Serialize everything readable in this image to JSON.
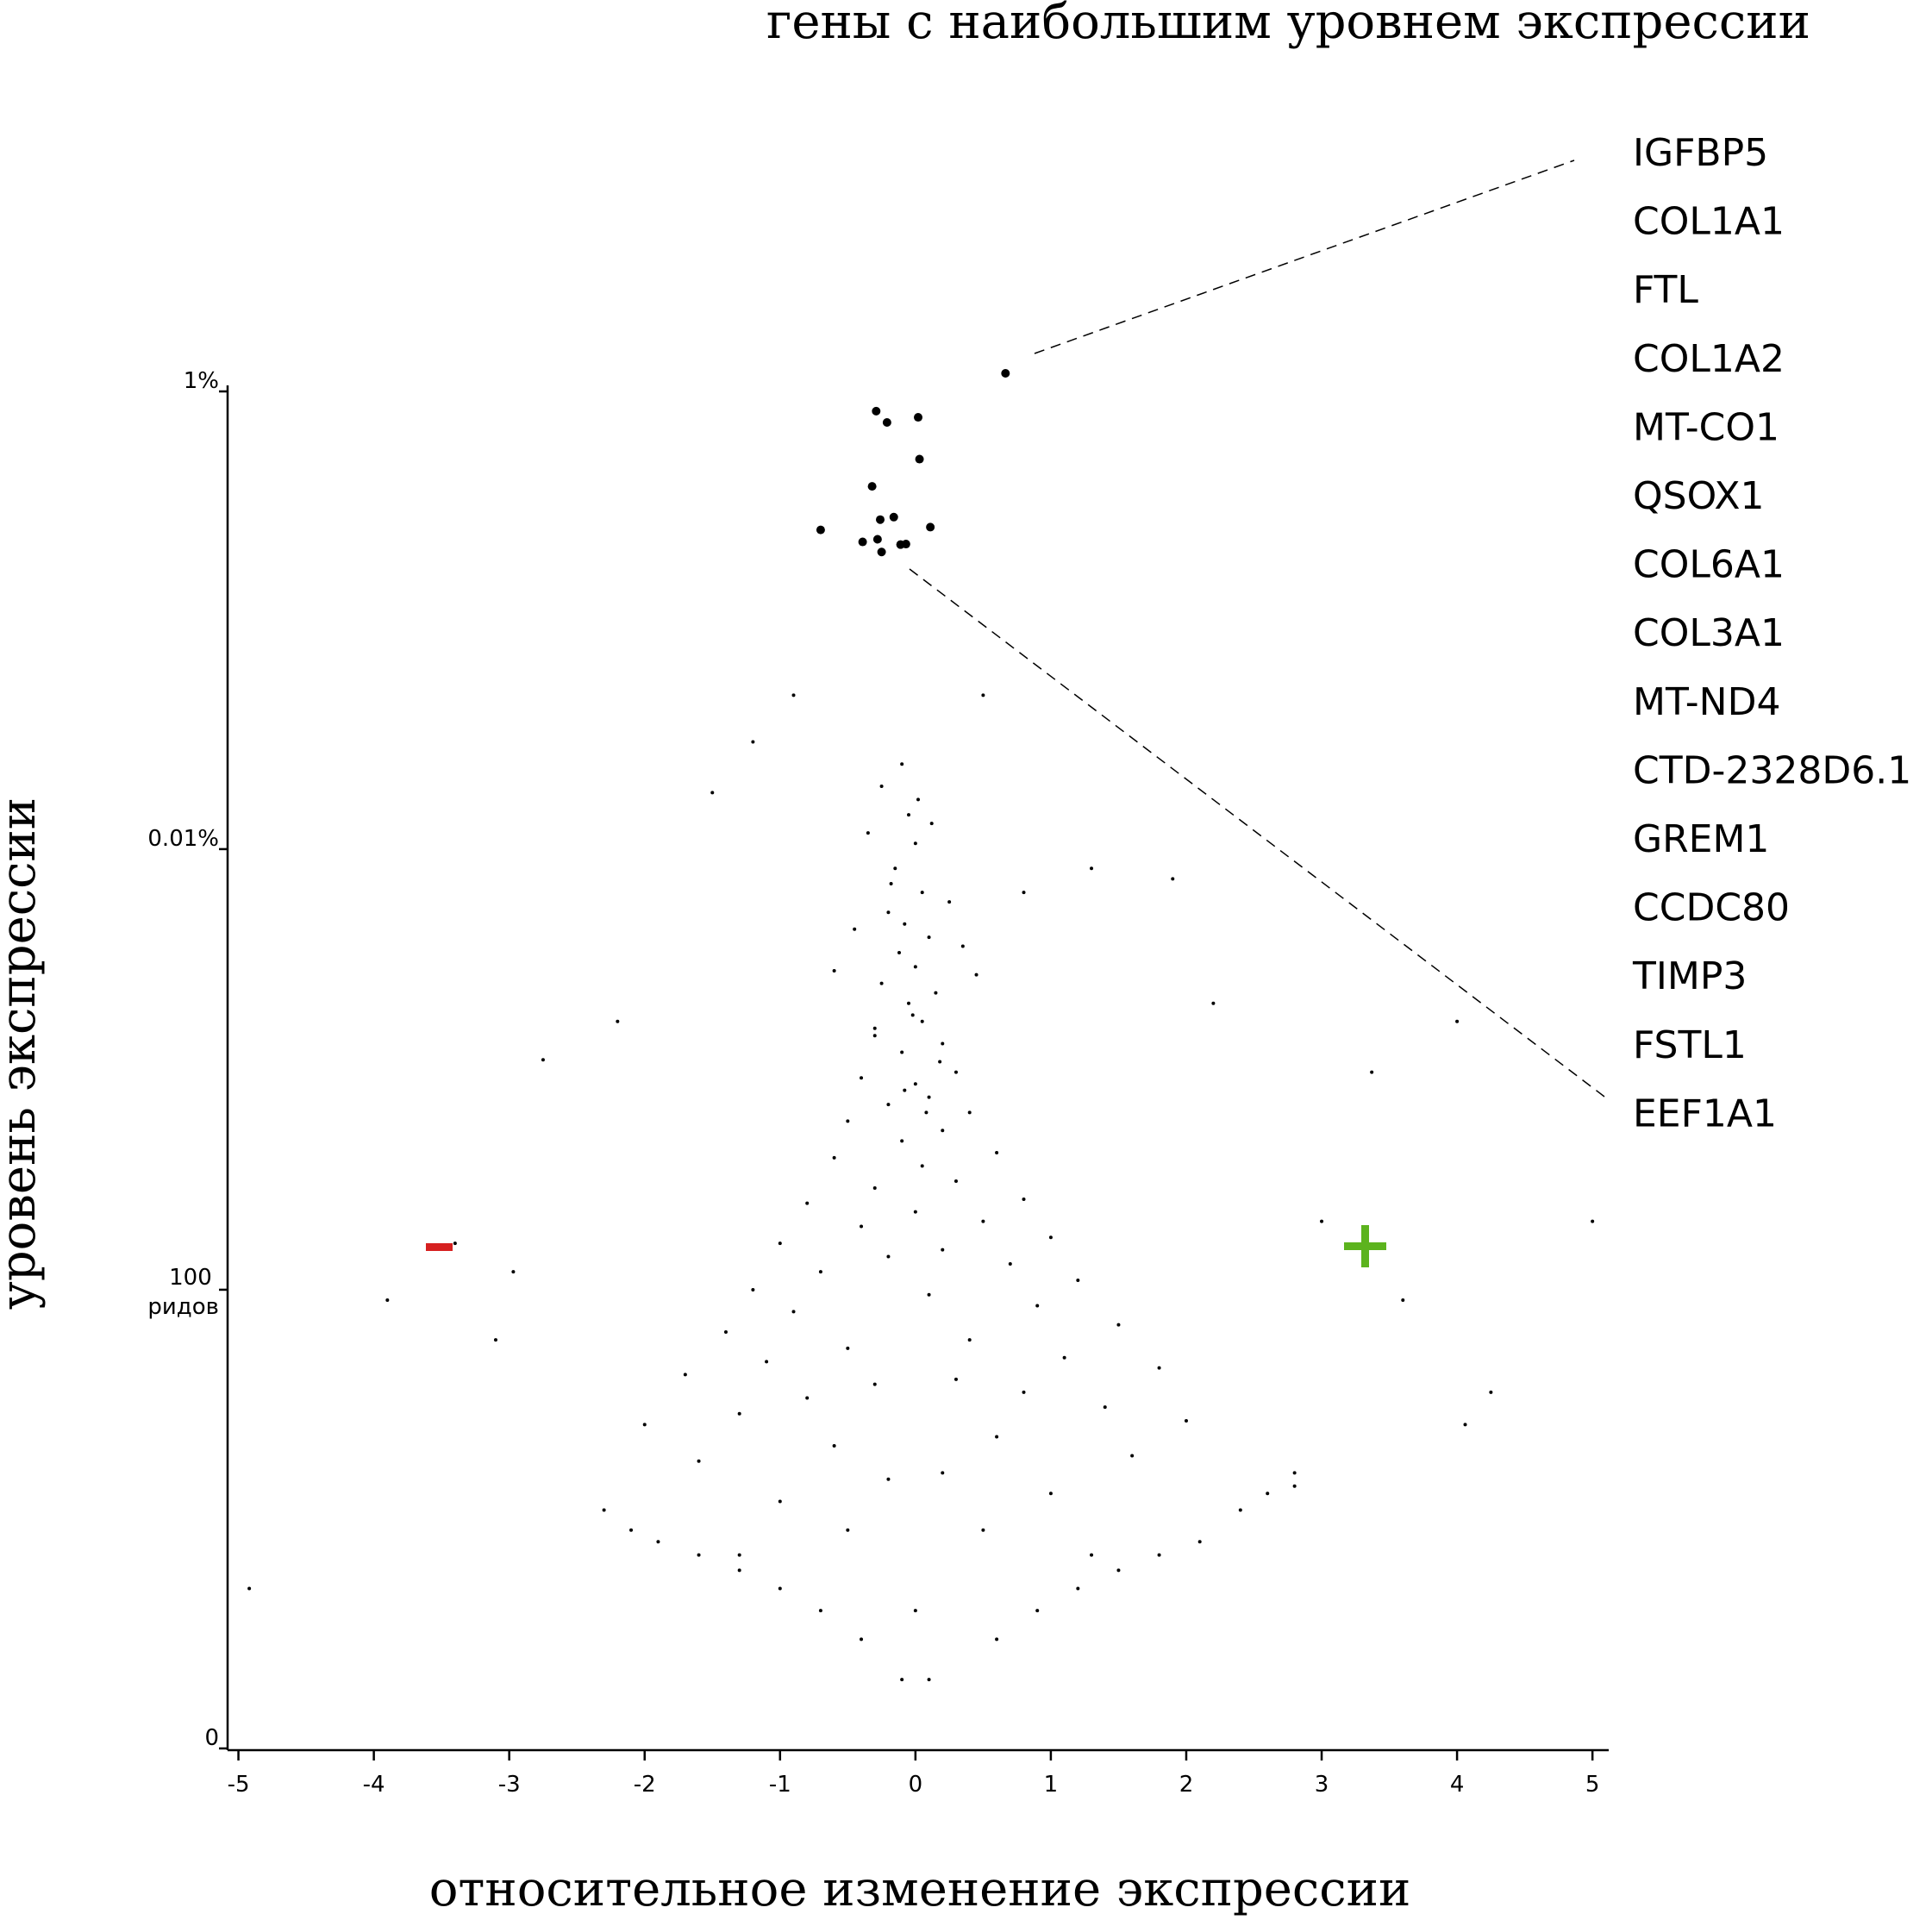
{
  "chart_data": {
    "type": "scatter",
    "title": "гены с наибольшим уровнем экспрессии",
    "x_label": "относительное изменение экспрессии",
    "y_label": "уровень экспрессии",
    "xlim": [
      -5.08,
      5.12
    ],
    "xticks": [
      -5,
      -4,
      -3,
      -2,
      -1,
      0,
      1,
      2,
      3,
      4,
      5
    ],
    "ylim": [
      0,
      850000
    ],
    "yscale": "log1p",
    "yticks": [
      {
        "value": 0,
        "label": "0"
      },
      {
        "value": 100,
        "label": "100 ридов"
      },
      {
        "value": 8500,
        "label": "0.01%"
      },
      {
        "value": 850000,
        "label": "1%"
      }
    ],
    "series": [
      {
        "color": "#000000",
        "x": [
          -0.1,
          -0.05,
          0,
          -0.15,
          0.05,
          -0.2,
          -0.08,
          0.1,
          -0.12,
          0,
          -0.25,
          0.15,
          -0.05,
          0.05,
          -0.3,
          0.2,
          -0.1,
          0.3,
          -0.4,
          0,
          0.1,
          -0.2,
          0.4,
          -0.5,
          0.2,
          -0.1,
          0.6,
          -0.6,
          0.05,
          0.3,
          -0.3,
          0.8,
          -0.8,
          0,
          0.5,
          -0.4,
          1.0,
          -1.0,
          0.2,
          -0.2,
          0.7,
          -0.7,
          1.2,
          -1.2,
          0.1,
          0.9,
          -0.9,
          1.5,
          -1.4,
          0.4,
          -0.5,
          1.1,
          -1.1,
          1.8,
          -1.7,
          0.3,
          -0.3,
          0.8,
          -0.8,
          1.4,
          -1.3,
          2.0,
          -2.0,
          0.6,
          -0.6,
          1.6,
          -1.6,
          0.2,
          -0.2,
          1.0,
          -1.0,
          2.4,
          -2.3,
          0.5,
          -0.5,
          1.3,
          -1.3,
          0,
          0.1,
          -0.1,
          -4.92,
          -3.9,
          -3.4,
          -2.97,
          -2.75,
          3.37,
          4.0,
          5.0,
          3.6,
          4.25,
          4.06,
          2.8,
          1.9,
          0.8,
          -1.5,
          -1.2,
          -2.2,
          -3.1,
          2.2,
          3.0,
          1.3,
          0.5,
          -0.9,
          0.6,
          0.9,
          1.2,
          1.5,
          1.8,
          2.1,
          -0.4,
          -0.7,
          -1.0,
          -1.3,
          -1.6,
          -1.9,
          -2.1,
          2.6,
          2.8,
          -0.25,
          0.02,
          -0.35,
          0.12,
          -0.18,
          0.25,
          -0.45,
          0.35,
          -0.6,
          0.45,
          -0.02,
          -0.3,
          0.18,
          -0.08,
          0.08
        ],
        "values": [
          20000,
          12000,
          9000,
          7000,
          5500,
          4500,
          4000,
          3500,
          3000,
          2600,
          2200,
          2000,
          1800,
          1500,
          1300,
          1200,
          1100,
          900,
          850,
          800,
          700,
          650,
          600,
          550,
          500,
          450,
          400,
          380,
          350,
          300,
          280,
          250,
          240,
          220,
          200,
          190,
          170,
          160,
          150,
          140,
          130,
          120,
          110,
          100,
          95,
          85,
          80,
          70,
          65,
          60,
          55,
          50,
          48,
          45,
          42,
          40,
          38,
          35,
          33,
          30,
          28,
          26,
          25,
          22,
          20,
          18,
          17,
          15,
          14,
          12,
          11,
          10,
          10,
          8,
          8,
          6,
          6,
          3,
          1,
          1,
          4,
          90,
          160,
          120,
          1020,
          900,
          1500,
          200,
          90,
          35,
          25,
          15,
          6300,
          5500,
          15000,
          25000,
          1500,
          60,
          1800,
          200,
          7000,
          40000,
          40000,
          2,
          3,
          4,
          5,
          6,
          7,
          2,
          3,
          4,
          5,
          6,
          7,
          8,
          12,
          13,
          16000,
          14000,
          10000,
          11000,
          6000,
          5000,
          3800,
          3200,
          2500,
          2400,
          1600,
          1400,
          1000,
          750,
          600
        ]
      },
      {
        "color": "#000000",
        "x": [
          0.665,
          -0.29,
          -0.21,
          0.02,
          0.03,
          -0.32,
          -0.26,
          -0.16,
          -0.7,
          0.11,
          -0.39,
          -0.28,
          -0.25,
          -0.11,
          -0.07
        ],
        "values": [
          1020000,
          697000,
          622000,
          655000,
          430000,
          327000,
          234000,
          240000,
          211000,
          217000,
          187000,
          192000,
          169000,
          182000,
          183000
        ]
      }
    ],
    "annotations": [
      "IGFBP5",
      "COL1A1",
      "FTL",
      "COL1A2",
      "MT-CO1",
      "QSOX1",
      "COL6A1",
      "COL3A1",
      "MT-ND4",
      "CTD-2328D6.1",
      "GREM1",
      "CCDC80",
      "TIMP3",
      "FSTL1",
      "EEF1A1"
    ]
  }
}
